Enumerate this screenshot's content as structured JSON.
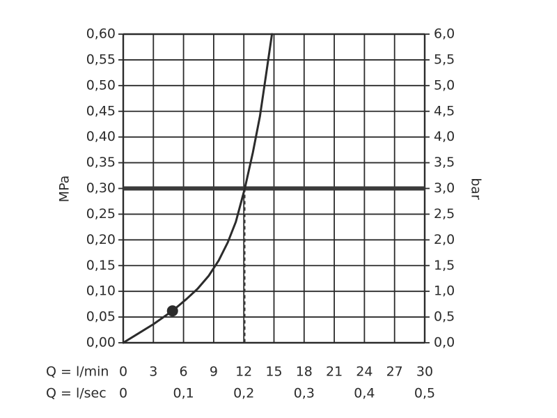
{
  "chart_data": {
    "type": "line",
    "title": "",
    "ylabel_left": "MPa",
    "ylabel_right": "bar",
    "x_row1_label": "Q = l/min",
    "x_row2_label": "Q = l/sec",
    "xlim": [
      0,
      30
    ],
    "ylim": [
      0,
      0.6
    ],
    "grid": true,
    "x_ticks": [
      "0",
      "3",
      "6",
      "9",
      "12",
      "15",
      "18",
      "21",
      "24",
      "27",
      "30"
    ],
    "x_ticks_sec": [
      {
        "x": 0,
        "label": "0"
      },
      {
        "x": 6,
        "label": "0,1"
      },
      {
        "x": 12,
        "label": "0,2"
      },
      {
        "x": 18,
        "label": "0,3"
      },
      {
        "x": 24,
        "label": "0,4"
      },
      {
        "x": 30,
        "label": "0,5"
      }
    ],
    "y_ticks_left": [
      "0,00",
      "0,05",
      "0,10",
      "0,15",
      "0,20",
      "0,25",
      "0,30",
      "0,35",
      "0,40",
      "0,45",
      "0,50",
      "0,55",
      "0,60"
    ],
    "y_ticks_right": [
      "0,0",
      "0,5",
      "1,0",
      "1,5",
      "2,0",
      "2,5",
      "3,0",
      "3,5",
      "4,0",
      "4,5",
      "5,0",
      "5,5",
      "6,0"
    ],
    "series": [
      {
        "x": [
          0,
          1.5,
          3,
          4.9,
          6.3,
          7.4,
          8.5,
          9.5,
          10.4,
          11.2,
          12.1,
          12.9,
          13.6,
          14.2,
          14.8
        ],
        "y": [
          0,
          0.018,
          0.036,
          0.062,
          0.085,
          0.105,
          0.13,
          0.16,
          0.195,
          0.235,
          0.3,
          0.37,
          0.44,
          0.52,
          0.6
        ]
      }
    ],
    "marker": {
      "x": 4.9,
      "y": 0.062
    },
    "reference_line_y": 0.3,
    "reference_drop_x": 12.1,
    "colors": {
      "line": "#2b2b2b",
      "grid": "#2b2b2b",
      "reference": "#3a3a3a"
    }
  }
}
